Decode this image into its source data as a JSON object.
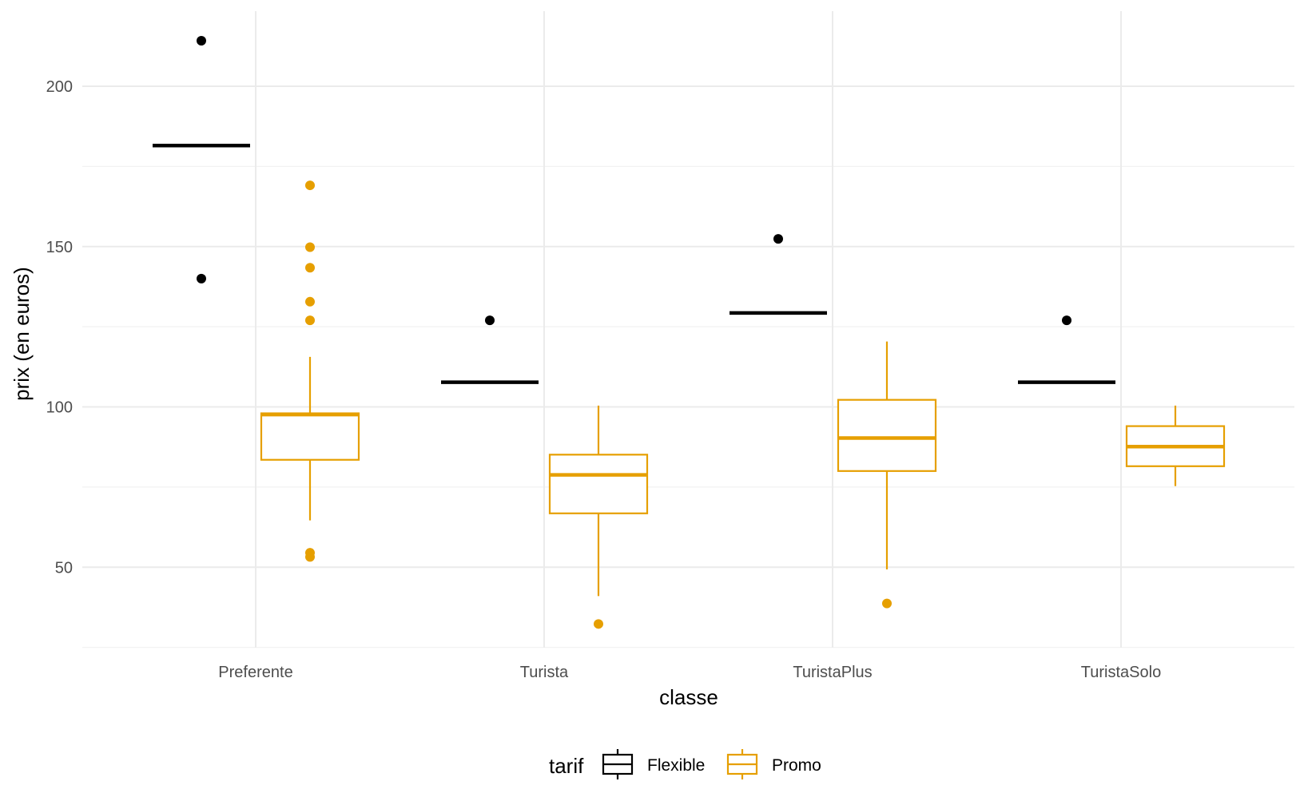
{
  "chart_data": {
    "type": "boxplot",
    "xlabel": "classe",
    "ylabel": "prix (en euros)",
    "categories": [
      "Preferente",
      "Turista",
      "TuristaPlus",
      "TuristaSolo"
    ],
    "ylim": [
      24,
      222
    ],
    "y_ticks": [
      50,
      100,
      150,
      200
    ],
    "grid": true,
    "legend": {
      "title": "tarif",
      "position": "bottom",
      "entries": [
        "Flexible",
        "Promo"
      ]
    },
    "colors": {
      "Flexible": "#000000",
      "Promo": "#E69F00"
    },
    "series": [
      {
        "name": "Flexible",
        "boxes": [
          {
            "category": "Preferente",
            "lower_whisker": 181.5,
            "q1": 181.5,
            "median": 181.5,
            "q3": 181.5,
            "upper_whisker": 181.5,
            "outliers": [
              214.2,
              140.0
            ]
          },
          {
            "category": "Turista",
            "lower_whisker": 107.7,
            "q1": 107.7,
            "median": 107.7,
            "q3": 107.7,
            "upper_whisker": 107.7,
            "outliers": [
              127.0
            ]
          },
          {
            "category": "TuristaPlus",
            "lower_whisker": 129.3,
            "q1": 129.3,
            "median": 129.3,
            "q3": 129.3,
            "upper_whisker": 129.3,
            "outliers": [
              152.4
            ]
          },
          {
            "category": "TuristaSolo",
            "lower_whisker": 107.7,
            "q1": 107.7,
            "median": 107.7,
            "q3": 107.7,
            "upper_whisker": 107.7,
            "outliers": [
              127.0
            ]
          }
        ]
      },
      {
        "name": "Promo",
        "boxes": [
          {
            "category": "Preferente",
            "lower_whisker": 64.6,
            "q1": 83.5,
            "median": 97.6,
            "q3": 98.0,
            "upper_whisker": 115.6,
            "outliers": [
              169.1,
              149.8,
              143.4,
              132.8,
              127.0,
              54.5,
              53.2
            ]
          },
          {
            "category": "Turista",
            "lower_whisker": 41.0,
            "q1": 66.8,
            "median": 78.8,
            "q3": 85.1,
            "upper_whisker": 100.4,
            "outliers": [
              32.3
            ]
          },
          {
            "category": "TuristaPlus",
            "lower_whisker": 49.3,
            "q1": 80.0,
            "median": 90.3,
            "q3": 102.2,
            "upper_whisker": 120.4,
            "outliers": [
              38.7
            ]
          },
          {
            "category": "TuristaSolo",
            "lower_whisker": 75.3,
            "q1": 81.5,
            "median": 87.6,
            "q3": 94.0,
            "upper_whisker": 100.4,
            "outliers": []
          }
        ]
      }
    ]
  }
}
